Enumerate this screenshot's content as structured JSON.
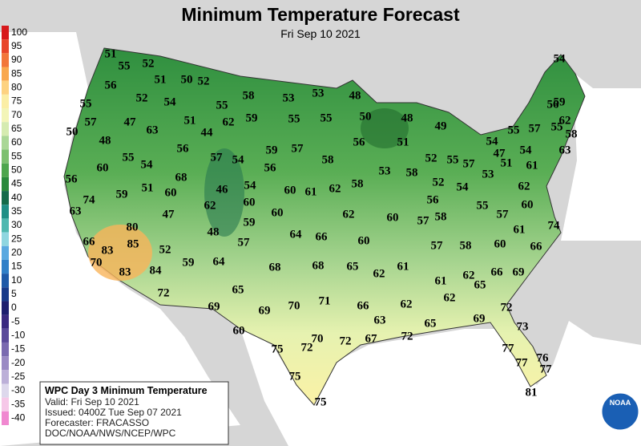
{
  "header": {
    "title": "Minimum Temperature Forecast",
    "subtitle": "Fri Sep 10 2021"
  },
  "legend": [
    {
      "label": "100",
      "color": "#d7191c"
    },
    {
      "label": "95",
      "color": "#e8452a"
    },
    {
      "label": "90",
      "color": "#f2763b"
    },
    {
      "label": "85",
      "color": "#f9a84f"
    },
    {
      "label": "80",
      "color": "#fdd281"
    },
    {
      "label": "75",
      "color": "#fbeea6"
    },
    {
      "label": "70",
      "color": "#f3f5b8"
    },
    {
      "label": "65",
      "color": "#d5ebb0"
    },
    {
      "label": "60",
      "color": "#aad796"
    },
    {
      "label": "55",
      "color": "#7dc070"
    },
    {
      "label": "50",
      "color": "#4ea64e"
    },
    {
      "label": "45",
      "color": "#2a8a3c"
    },
    {
      "label": "40",
      "color": "#146b4a"
    },
    {
      "label": "35",
      "color": "#1f8f86"
    },
    {
      "label": "30",
      "color": "#4fb8b0"
    },
    {
      "label": "25",
      "color": "#8fd6e0"
    },
    {
      "label": "20",
      "color": "#5aa9e0"
    },
    {
      "label": "15",
      "color": "#3180c8"
    },
    {
      "label": "10",
      "color": "#1f5aa8"
    },
    {
      "label": "5",
      "color": "#173a8a"
    },
    {
      "label": "0",
      "color": "#1d1f6e"
    },
    {
      "label": "-5",
      "color": "#3a2a80"
    },
    {
      "label": "-10",
      "color": "#5a4a9a"
    },
    {
      "label": "-15",
      "color": "#7a6ab0"
    },
    {
      "label": "-20",
      "color": "#9a8ac4"
    },
    {
      "label": "-25",
      "color": "#bcb0d8"
    },
    {
      "label": "-30",
      "color": "#ddd8ec"
    },
    {
      "label": "-35",
      "color": "#f6c8e8"
    },
    {
      "label": "-40",
      "color": "#f088d0"
    }
  ],
  "temperatures": [
    51,
    55,
    52,
    51,
    50,
    52,
    54,
    56,
    52,
    54,
    55,
    58,
    53,
    53,
    48,
    55,
    57,
    47,
    63,
    51,
    44,
    62,
    59,
    55,
    55,
    50,
    48,
    49,
    56,
    59,
    50,
    48,
    56,
    57,
    54,
    59,
    57,
    58,
    56,
    51,
    52,
    55,
    57,
    54,
    55,
    57,
    55,
    58,
    62,
    63,
    55,
    54,
    60,
    56,
    68,
    54,
    56,
    53,
    58,
    52,
    54,
    53,
    47,
    51,
    54,
    61,
    59,
    51,
    60,
    46,
    60,
    61,
    62,
    58,
    56,
    62,
    55,
    60,
    74,
    63,
    47,
    62,
    60,
    60,
    62,
    60,
    57,
    58,
    57,
    61,
    74,
    80,
    48,
    59,
    57,
    64,
    66,
    60,
    57,
    58,
    60,
    66,
    66,
    83,
    85,
    52,
    70,
    84,
    83,
    59,
    64,
    68,
    68,
    65,
    62,
    61,
    61,
    62,
    65,
    66,
    69,
    72,
    65,
    69,
    69,
    70,
    71,
    66,
    62,
    62,
    72,
    60,
    63,
    69,
    65,
    73,
    75,
    72,
    70,
    72,
    67,
    72,
    77,
    76,
    75,
    77,
    77,
    75,
    81
  ],
  "info_box": {
    "title": "WPC Day 3 Minimum Temperature",
    "lines": [
      "Valid: Fri Sep 10 2021",
      "Issued: 0400Z Tue Sep 07 2021",
      "Forecaster: FRACASSO",
      "DOC/NOAA/NWS/NCEP/WPC"
    ]
  },
  "logo": {
    "text": "NOAA"
  }
}
